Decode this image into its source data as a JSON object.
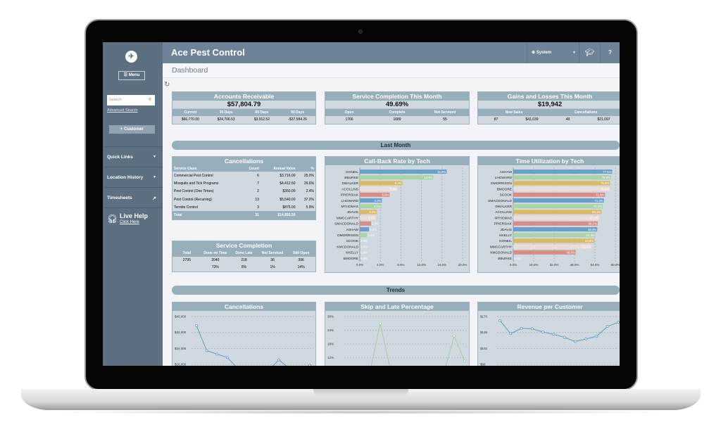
{
  "app_title": "Ace Pest Control",
  "page_title": "Dashboard",
  "sidebar": {
    "menu_label": "Menu",
    "search_placeholder": "Search",
    "advanced_search": "Advanced Search",
    "customer_button": "+ Customer",
    "items": [
      {
        "label": "Quick Links",
        "icon": "chevron-down-icon"
      },
      {
        "label": "Location History",
        "icon": "chevron-down-icon"
      },
      {
        "label": "Timesheets",
        "icon": "external-arrow-icon"
      }
    ],
    "live_help": {
      "title": "Live Help",
      "link": "Click Here"
    }
  },
  "header": {
    "user": "System",
    "help": "?"
  },
  "accounts_receivable": {
    "title": "Accounts Receivable",
    "total": "$57,804.79",
    "columns": [
      "Current",
      "30 Days",
      "60 Days",
      "90 Days"
    ],
    "values": [
      "$66,770.00",
      "$24,706.53",
      "$3,912.52",
      "-$37,584.26"
    ]
  },
  "service_completion_month": {
    "title": "Service Completion This Month",
    "total": "49.69%",
    "columns": [
      "Open",
      "Complete",
      "Not Serviced"
    ],
    "values": [
      "1766",
      "1689",
      "55"
    ]
  },
  "gains_losses": {
    "title": "Gains and Losses This Month",
    "total": "$19,942",
    "columns": [
      "New Sales",
      "Cancellations"
    ],
    "values": [
      "87",
      "$41,039",
      "49",
      "$21,097"
    ]
  },
  "sections": {
    "last_month": "Last Month",
    "trends": "Trends"
  },
  "cancellations_table": {
    "title": "Cancellations",
    "columns": [
      "Service Class",
      "Count",
      "Annual Value",
      "%"
    ],
    "rows": [
      [
        "Commercial Pest Control",
        "6",
        "$3,716.00",
        "25.0%"
      ],
      [
        "Mosquito and Tick Programs",
        "7",
        "$4,412.50",
        "29.6%"
      ],
      [
        "Pest Control (One Times)",
        "2",
        "$350.00",
        "2.4%"
      ],
      [
        "Pest Control (Recurring)",
        "13",
        "$5,540.00",
        "37.2%"
      ],
      [
        "Termite Control",
        "3",
        "$875.00",
        "5.9%"
      ]
    ],
    "total": [
      "Total",
      "31",
      "$14,893.50",
      ""
    ]
  },
  "service_completion": {
    "title": "Service Completion",
    "columns": [
      "Total",
      "Done on Time",
      "Done Late",
      "Not Serviced",
      "Still Open"
    ],
    "counts": [
      "2795",
      "2040",
      "218",
      "36",
      "396"
    ],
    "percents": [
      "",
      "73%",
      "8%",
      "1%",
      "14%"
    ]
  },
  "colors": {
    "series": [
      "#6a9fcb",
      "#a9d4a6",
      "#dbb963",
      "#eeddd6",
      "#d98b85"
    ],
    "line_blue": "#5f9ac6",
    "line_green": "#9fd09a"
  },
  "chart_data": [
    {
      "type": "bar",
      "orientation": "horizontal",
      "title": "Call-Back Rate by Tech",
      "xlim": [
        0,
        20
      ],
      "ticks": [
        "0.0%",
        "4.0%",
        "8.0%",
        "12.0%",
        "16.0%",
        "20.0%"
      ],
      "categories": [
        "GONEIL",
        "BBURKE",
        "DWALKER",
        "ACOLLINS",
        "PPIERSIAK",
        "LHOWARD",
        "MTHOMAS",
        "JDAVIS",
        "MMCCARTHY",
        "SMACDONALD",
        "ASHAW",
        "DMORRISON",
        "SCOOK",
        "KMCDONALD",
        "KKELLY",
        "BMOORE"
      ],
      "values": [
        16.9,
        14.3,
        8.3,
        7.3,
        5.8,
        4.3,
        4.2,
        3.3,
        3.1,
        2.2,
        1.8,
        1.4,
        0,
        0,
        0,
        0
      ],
      "labels": [
        "16.9%",
        "14.3%",
        "8.3%",
        "7.3%",
        "5.8%",
        "4.3%",
        "4.2%",
        "3.3%",
        "3.1%",
        "2.2%",
        "1.8%",
        "1.4%",
        "0.0%",
        "0.0%",
        "0.0%",
        "0.0%"
      ]
    },
    {
      "type": "bar",
      "orientation": "horizontal",
      "title": "Time Utilization by Tech",
      "xlim": [
        0,
        80
      ],
      "ticks": [
        "0.0%",
        "16.0%",
        "32.0%",
        "48.0%",
        "64.0%",
        "80.0%"
      ],
      "categories": [
        "ASHAW",
        "LHOWARD",
        "DMORRISON",
        "BMOORE",
        "SCOOK",
        "SMACDONALD",
        "DWALKER",
        "ACOLLINS",
        "MTHOMAS",
        "PPIERSIAK",
        "JDAVIS",
        "KKELLY",
        "GONEIL",
        "MMCCARTHY",
        "KMCDONALD",
        "BBURKE"
      ],
      "values": [
        77.5,
        76.6,
        75.8,
        75.6,
        71.9,
        71.0,
        70.1,
        69.1,
        67.2,
        66.1,
        65.8,
        64.3,
        63.5,
        61.4,
        48.9,
        0
      ],
      "labels": [
        "77.5%",
        "76.6%",
        "75.8%",
        "75.6%",
        "71.9%",
        "71.0%",
        "70.1%",
        "69.1%",
        "67.2%",
        "66.1%",
        "65.8%",
        "64.3%",
        "63.5%",
        "61.4%",
        "48.9%",
        "0.0%"
      ]
    },
    {
      "type": "line",
      "title": "Cancellations",
      "ticks": [
        "$40,000",
        "$32,000",
        "$24,000",
        "$16,000"
      ],
      "tick_values": [
        40000,
        32000,
        24000,
        16000
      ],
      "values": [
        35500,
        22900,
        21200,
        19400,
        14000,
        12000,
        12000,
        13000,
        18300,
        14000,
        12000,
        15500
      ]
    },
    {
      "type": "line",
      "title": "Skip and Late Percentage",
      "ticks": [
        "30%",
        "24%",
        "18%",
        "12%"
      ],
      "tick_values": [
        30,
        24,
        18,
        12
      ],
      "values": [
        4,
        5,
        5,
        27,
        6,
        5,
        4,
        5,
        5,
        5,
        21.5,
        10.5
      ]
    },
    {
      "type": "line",
      "title": "Revenue per Customer",
      "ticks": [
        "$170",
        "$136",
        "$102",
        "$68"
      ],
      "tick_values": [
        170,
        136,
        102,
        68
      ],
      "values": [
        161.6,
        133.5,
        144.9,
        143.9,
        137,
        132,
        125.7,
        116.8,
        122.2,
        128,
        148.8,
        157.7
      ]
    }
  ]
}
